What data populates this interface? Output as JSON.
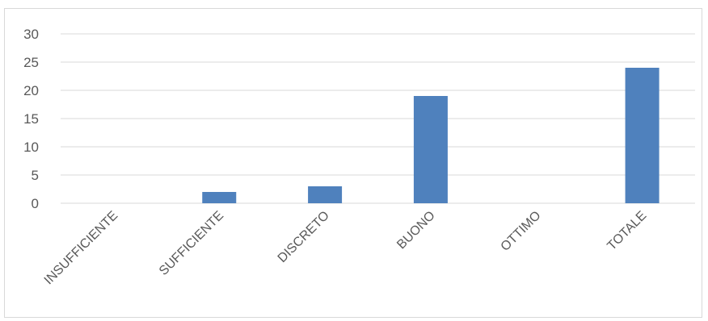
{
  "chart_data": {
    "type": "bar",
    "categories": [
      "INSUFFICIENTE",
      "SUFFICIENTE",
      "DISCRETO",
      "BUONO",
      "OTTIMO",
      "TOTALE"
    ],
    "values": [
      0,
      2,
      3,
      19,
      0,
      24
    ],
    "ylim": [
      0,
      30
    ],
    "yticks": [
      "0",
      "5",
      "10",
      "15",
      "20",
      "25",
      "30"
    ],
    "grid": true,
    "legend": "none",
    "colors": {
      "bar": "#4f81bd",
      "grid": "#d9d9d9",
      "text": "#595959"
    }
  }
}
